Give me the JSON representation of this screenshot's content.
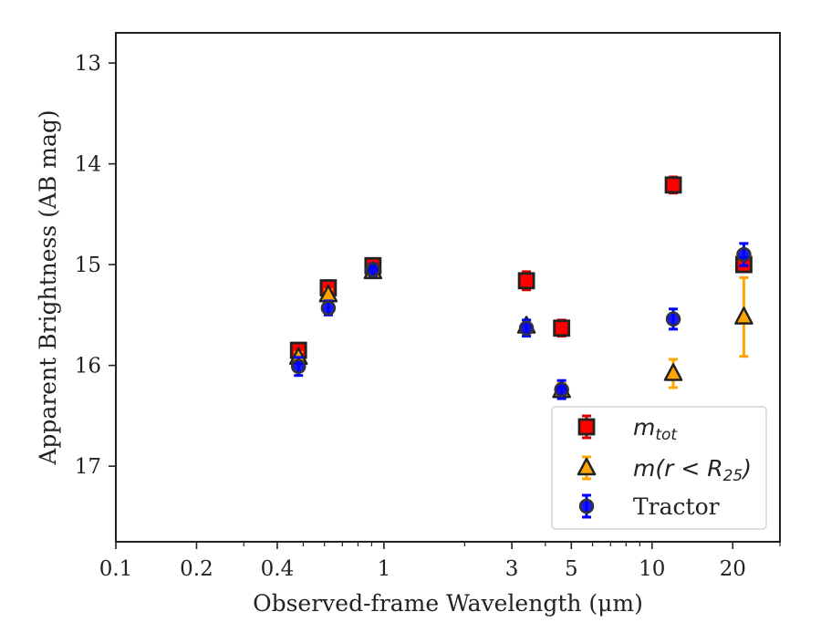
{
  "chart_data": {
    "type": "scatter",
    "title": "",
    "xlabel": "Observed-frame Wavelength (μm)",
    "ylabel": "Apparent Brightness (AB mag)",
    "xscale": "log",
    "xlim": [
      0.1,
      30
    ],
    "ylim": [
      17.75,
      12.7
    ],
    "y_inverted": true,
    "grid": false,
    "legend_position": "bottom-right",
    "x_ticks": [
      {
        "value": 0.1,
        "label": "0.1"
      },
      {
        "value": 0.2,
        "label": "0.2"
      },
      {
        "value": 0.4,
        "label": "0.4"
      },
      {
        "value": 1,
        "label": "1"
      },
      {
        "value": 3,
        "label": "3"
      },
      {
        "value": 5,
        "label": "5"
      },
      {
        "value": 10,
        "label": "10"
      },
      {
        "value": 20,
        "label": "20"
      }
    ],
    "x_minor_ticks": [
      0.3,
      0.5,
      0.6,
      0.7,
      0.8,
      0.9,
      2,
      4,
      6,
      7,
      8,
      9,
      30
    ],
    "y_ticks": [
      {
        "value": 13,
        "label": "13"
      },
      {
        "value": 14,
        "label": "14"
      },
      {
        "value": 15,
        "label": "15"
      },
      {
        "value": 16,
        "label": "16"
      },
      {
        "value": 17,
        "label": "17"
      }
    ],
    "series": [
      {
        "name": "m_tot",
        "legend": {
          "base": "m",
          "sub": "tot"
        },
        "marker": "square",
        "color": "#ff0000",
        "error_color": "#dd0000",
        "points": [
          {
            "x": 0.48,
            "y": 15.85,
            "err": 0.07
          },
          {
            "x": 0.62,
            "y": 15.23,
            "err": 0.07
          },
          {
            "x": 0.91,
            "y": 15.01,
            "err": 0.06
          },
          {
            "x": 3.4,
            "y": 15.16,
            "err": 0.09
          },
          {
            "x": 4.6,
            "y": 15.63,
            "err": 0.08
          },
          {
            "x": 12.0,
            "y": 14.21,
            "err": 0.08
          },
          {
            "x": 22.0,
            "y": 15.0,
            "err": 0.07
          }
        ]
      },
      {
        "name": "m(r < R25)",
        "legend": {
          "text": "m(r < R",
          "sub": "25",
          "close": ")"
        },
        "marker": "triangle",
        "color": "#ffa500",
        "error_color": "#ffa500",
        "points": [
          {
            "x": 0.48,
            "y": 15.92,
            "err": 0.05
          },
          {
            "x": 0.62,
            "y": 15.3,
            "err": 0.05
          },
          {
            "x": 0.91,
            "y": 15.07,
            "err": 0.05
          },
          {
            "x": 3.4,
            "y": 15.61,
            "err": 0.06
          },
          {
            "x": 4.6,
            "y": 16.25,
            "err": 0.07
          },
          {
            "x": 12.0,
            "y": 16.08,
            "err": 0.14
          },
          {
            "x": 22.0,
            "y": 15.52,
            "err": 0.39
          }
        ]
      },
      {
        "name": "Tractor",
        "legend": {
          "text": "Tractor"
        },
        "marker": "circle",
        "color": "#0000ff",
        "error_color": "#0000ff",
        "points": [
          {
            "x": 0.48,
            "y": 16.01,
            "err": 0.09
          },
          {
            "x": 0.62,
            "y": 15.43,
            "err": 0.07
          },
          {
            "x": 0.91,
            "y": 15.05,
            "err": 0.06
          },
          {
            "x": 3.4,
            "y": 15.63,
            "err": 0.08
          },
          {
            "x": 4.6,
            "y": 16.24,
            "err": 0.09
          },
          {
            "x": 12.0,
            "y": 15.54,
            "err": 0.1
          },
          {
            "x": 22.0,
            "y": 14.9,
            "err": 0.11
          }
        ]
      }
    ]
  }
}
